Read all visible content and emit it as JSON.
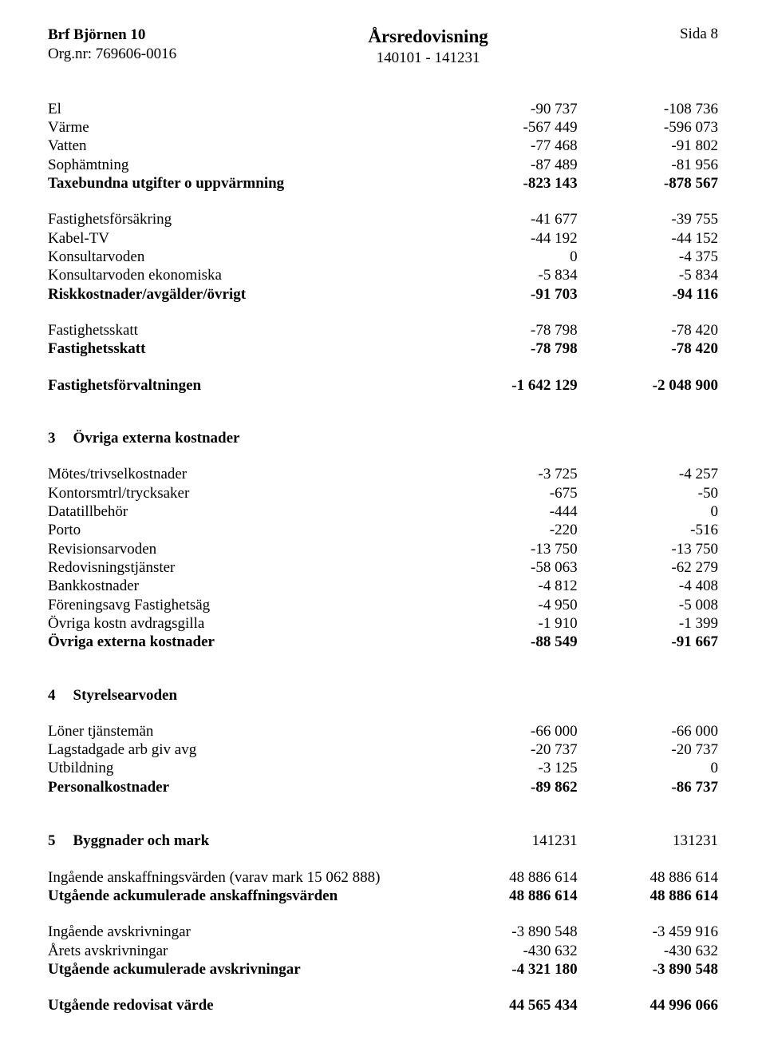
{
  "header": {
    "org_name": "Brf Björnen 10",
    "org_nr_label": "Org.nr: 769606-0016",
    "title": "Årsredovisning",
    "period": "140101 - 141231",
    "page_label": "Sida 8"
  },
  "section1": {
    "rows": [
      {
        "label": "El",
        "c1": "-90 737",
        "c2": "-108 736",
        "bold": false
      },
      {
        "label": "Värme",
        "c1": "-567 449",
        "c2": "-596 073",
        "bold": false
      },
      {
        "label": "Vatten",
        "c1": "-77 468",
        "c2": "-91 802",
        "bold": false
      },
      {
        "label": "Sophämtning",
        "c1": "-87 489",
        "c2": "-81 956",
        "bold": false
      },
      {
        "label": "Taxebundna utgifter o uppvärmning",
        "c1": "-823 143",
        "c2": "-878 567",
        "bold": true
      }
    ],
    "rows2": [
      {
        "label": "Fastighetsförsäkring",
        "c1": "-41 677",
        "c2": "-39 755",
        "bold": false
      },
      {
        "label": "Kabel-TV",
        "c1": "-44 192",
        "c2": "-44 152",
        "bold": false
      },
      {
        "label": "Konsultarvoden",
        "c1": "0",
        "c2": "-4 375",
        "bold": false
      },
      {
        "label": "Konsultarvoden ekonomiska",
        "c1": "-5 834",
        "c2": "-5 834",
        "bold": false
      },
      {
        "label": "Riskkostnader/avgälder/övrigt",
        "c1": "-91 703",
        "c2": "-94 116",
        "bold": true
      }
    ],
    "rows3": [
      {
        "label": "Fastighetsskatt",
        "c1": "-78 798",
        "c2": "-78 420",
        "bold": false
      },
      {
        "label": "Fastighetsskatt",
        "c1": "-78 798",
        "c2": "-78 420",
        "bold": true
      }
    ],
    "total": {
      "label": "Fastighetsförvaltningen",
      "c1": "-1 642 129",
      "c2": "-2 048 900",
      "bold": true
    }
  },
  "section3": {
    "heading_num": "3",
    "heading_text": "Övriga externa kostnader",
    "rows": [
      {
        "label": "Mötes/trivselkostnader",
        "c1": "-3 725",
        "c2": "-4 257",
        "bold": false
      },
      {
        "label": "Kontorsmtrl/trycksaker",
        "c1": "-675",
        "c2": "-50",
        "bold": false
      },
      {
        "label": "Datatillbehör",
        "c1": "-444",
        "c2": "0",
        "bold": false
      },
      {
        "label": "Porto",
        "c1": "-220",
        "c2": "-516",
        "bold": false
      },
      {
        "label": "Revisionsarvoden",
        "c1": "-13 750",
        "c2": "-13 750",
        "bold": false
      },
      {
        "label": "Redovisningstjänster",
        "c1": "-58 063",
        "c2": "-62 279",
        "bold": false
      },
      {
        "label": "Bankkostnader",
        "c1": "-4 812",
        "c2": "-4 408",
        "bold": false
      },
      {
        "label": "Föreningsavg Fastighetsäg",
        "c1": "-4 950",
        "c2": "-5 008",
        "bold": false
      },
      {
        "label": "Övriga kostn avdragsgilla",
        "c1": "-1 910",
        "c2": "-1 399",
        "bold": false
      },
      {
        "label": "Övriga externa kostnader",
        "c1": "-88 549",
        "c2": "-91 667",
        "bold": true
      }
    ]
  },
  "section4": {
    "heading_num": "4",
    "heading_text": "Styrelsearvoden",
    "rows": [
      {
        "label": "Löner tjänstemän",
        "c1": "-66 000",
        "c2": "-66 000",
        "bold": false
      },
      {
        "label": "Lagstadgade arb giv avg",
        "c1": "-20 737",
        "c2": "-20 737",
        "bold": false
      },
      {
        "label": "Utbildning",
        "c1": "-3 125",
        "c2": "0",
        "bold": false
      },
      {
        "label": "Personalkostnader",
        "c1": "-89 862",
        "c2": "-86 737",
        "bold": true
      }
    ]
  },
  "section5": {
    "heading_num": "5",
    "heading_text": "Byggnader och mark",
    "heading_c1": "141231",
    "heading_c2": "131231",
    "rows1": [
      {
        "label": "Ingående anskaffningsvärden (varav mark 15 062 888)",
        "c1": "48 886 614",
        "c2": "48 886 614",
        "bold": false
      },
      {
        "label": "Utgående ackumulerade anskaffningsvärden",
        "c1": "48 886 614",
        "c2": "48 886 614",
        "bold": true
      }
    ],
    "rows2": [
      {
        "label": "Ingående avskrivningar",
        "c1": "-3 890 548",
        "c2": "-3 459 916",
        "bold": false
      },
      {
        "label": "Årets avskrivningar",
        "c1": "-430 632",
        "c2": "-430 632",
        "bold": false
      },
      {
        "label": "Utgående ackumulerade avskrivningar",
        "c1": "-4 321 180",
        "c2": "-3 890 548",
        "bold": true
      }
    ],
    "rows3": [
      {
        "label": "Utgående redovisat värde",
        "c1": "44 565 434",
        "c2": "44 996 066",
        "bold": true
      }
    ]
  }
}
